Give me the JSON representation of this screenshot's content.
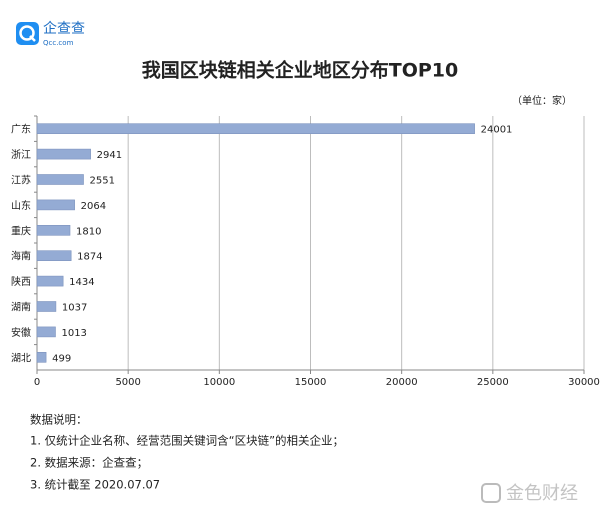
{
  "logo": {
    "name": "企查查",
    "site": "Qcc.com"
  },
  "chart_data": {
    "type": "bar",
    "orientation": "horizontal",
    "title": "我国区块链相关企业地区分布TOP10",
    "unit": "（单位：家）",
    "categories": [
      "广东",
      "浙江",
      "江苏",
      "山东",
      "重庆",
      "海南",
      "陕西",
      "湖南",
      "安徽",
      "湖北"
    ],
    "values": [
      24001,
      2941,
      2551,
      2064,
      1810,
      1874,
      1434,
      1037,
      1013,
      499
    ],
    "color": "#94abd4",
    "xlim": [
      0,
      30000
    ],
    "xticks": [
      0,
      5000,
      10000,
      15000,
      20000,
      25000,
      30000
    ],
    "grid": true
  },
  "notes": {
    "title": "数据说明：",
    "items": [
      "1. 仅统计企业名称、经营范围关键词含“区块链”的相关企业；",
      "2. 数据来源：企查查；",
      "3. 统计截至 2020.07.07"
    ]
  },
  "watermark": "金色财经"
}
